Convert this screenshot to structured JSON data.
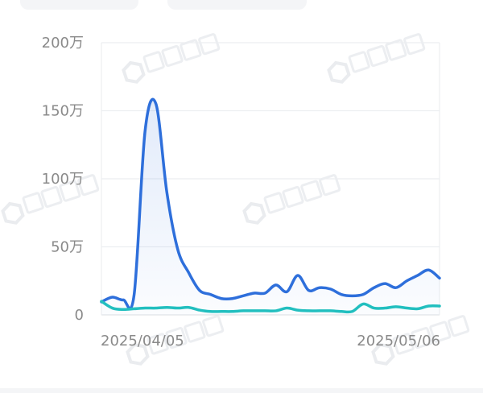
{
  "watermark": "巨量算数",
  "chart_data": {
    "type": "area",
    "title": "",
    "xlabel": "",
    "ylabel": "",
    "ylim": [
      0,
      2000000
    ],
    "y_ticks": [
      {
        "value": 0,
        "label": "0"
      },
      {
        "value": 500000,
        "label": "50万"
      },
      {
        "value": 1000000,
        "label": "100万"
      },
      {
        "value": 1500000,
        "label": "150万"
      },
      {
        "value": 2000000,
        "label": "200万"
      }
    ],
    "x_tick_labels": [
      "2025/04/05",
      "2025/05/06"
    ],
    "x_range": [
      "2025/04/05",
      "2025/05/06"
    ],
    "grid": true,
    "colors": {
      "series1": "#2e6fdb",
      "series2": "#22bfbf",
      "grid": "#eceef1",
      "tick": "#8a8a8a"
    },
    "series": [
      {
        "values": [
          95000,
          130000,
          110000,
          150000,
          1350000,
          1550000,
          900000,
          480000,
          310000,
          180000,
          150000,
          120000,
          120000,
          140000,
          160000,
          160000,
          220000,
          170000,
          290000,
          180000,
          200000,
          190000,
          150000,
          140000,
          150000,
          200000,
          230000,
          200000,
          250000,
          290000,
          330000,
          270000
        ],
        "fill": true
      },
      {
        "values": [
          100000,
          50000,
          40000,
          45000,
          50000,
          50000,
          55000,
          50000,
          55000,
          35000,
          25000,
          25000,
          25000,
          30000,
          30000,
          30000,
          30000,
          50000,
          35000,
          30000,
          30000,
          30000,
          25000,
          25000,
          80000,
          50000,
          50000,
          60000,
          50000,
          45000,
          65000,
          65000
        ],
        "fill": false
      }
    ]
  }
}
